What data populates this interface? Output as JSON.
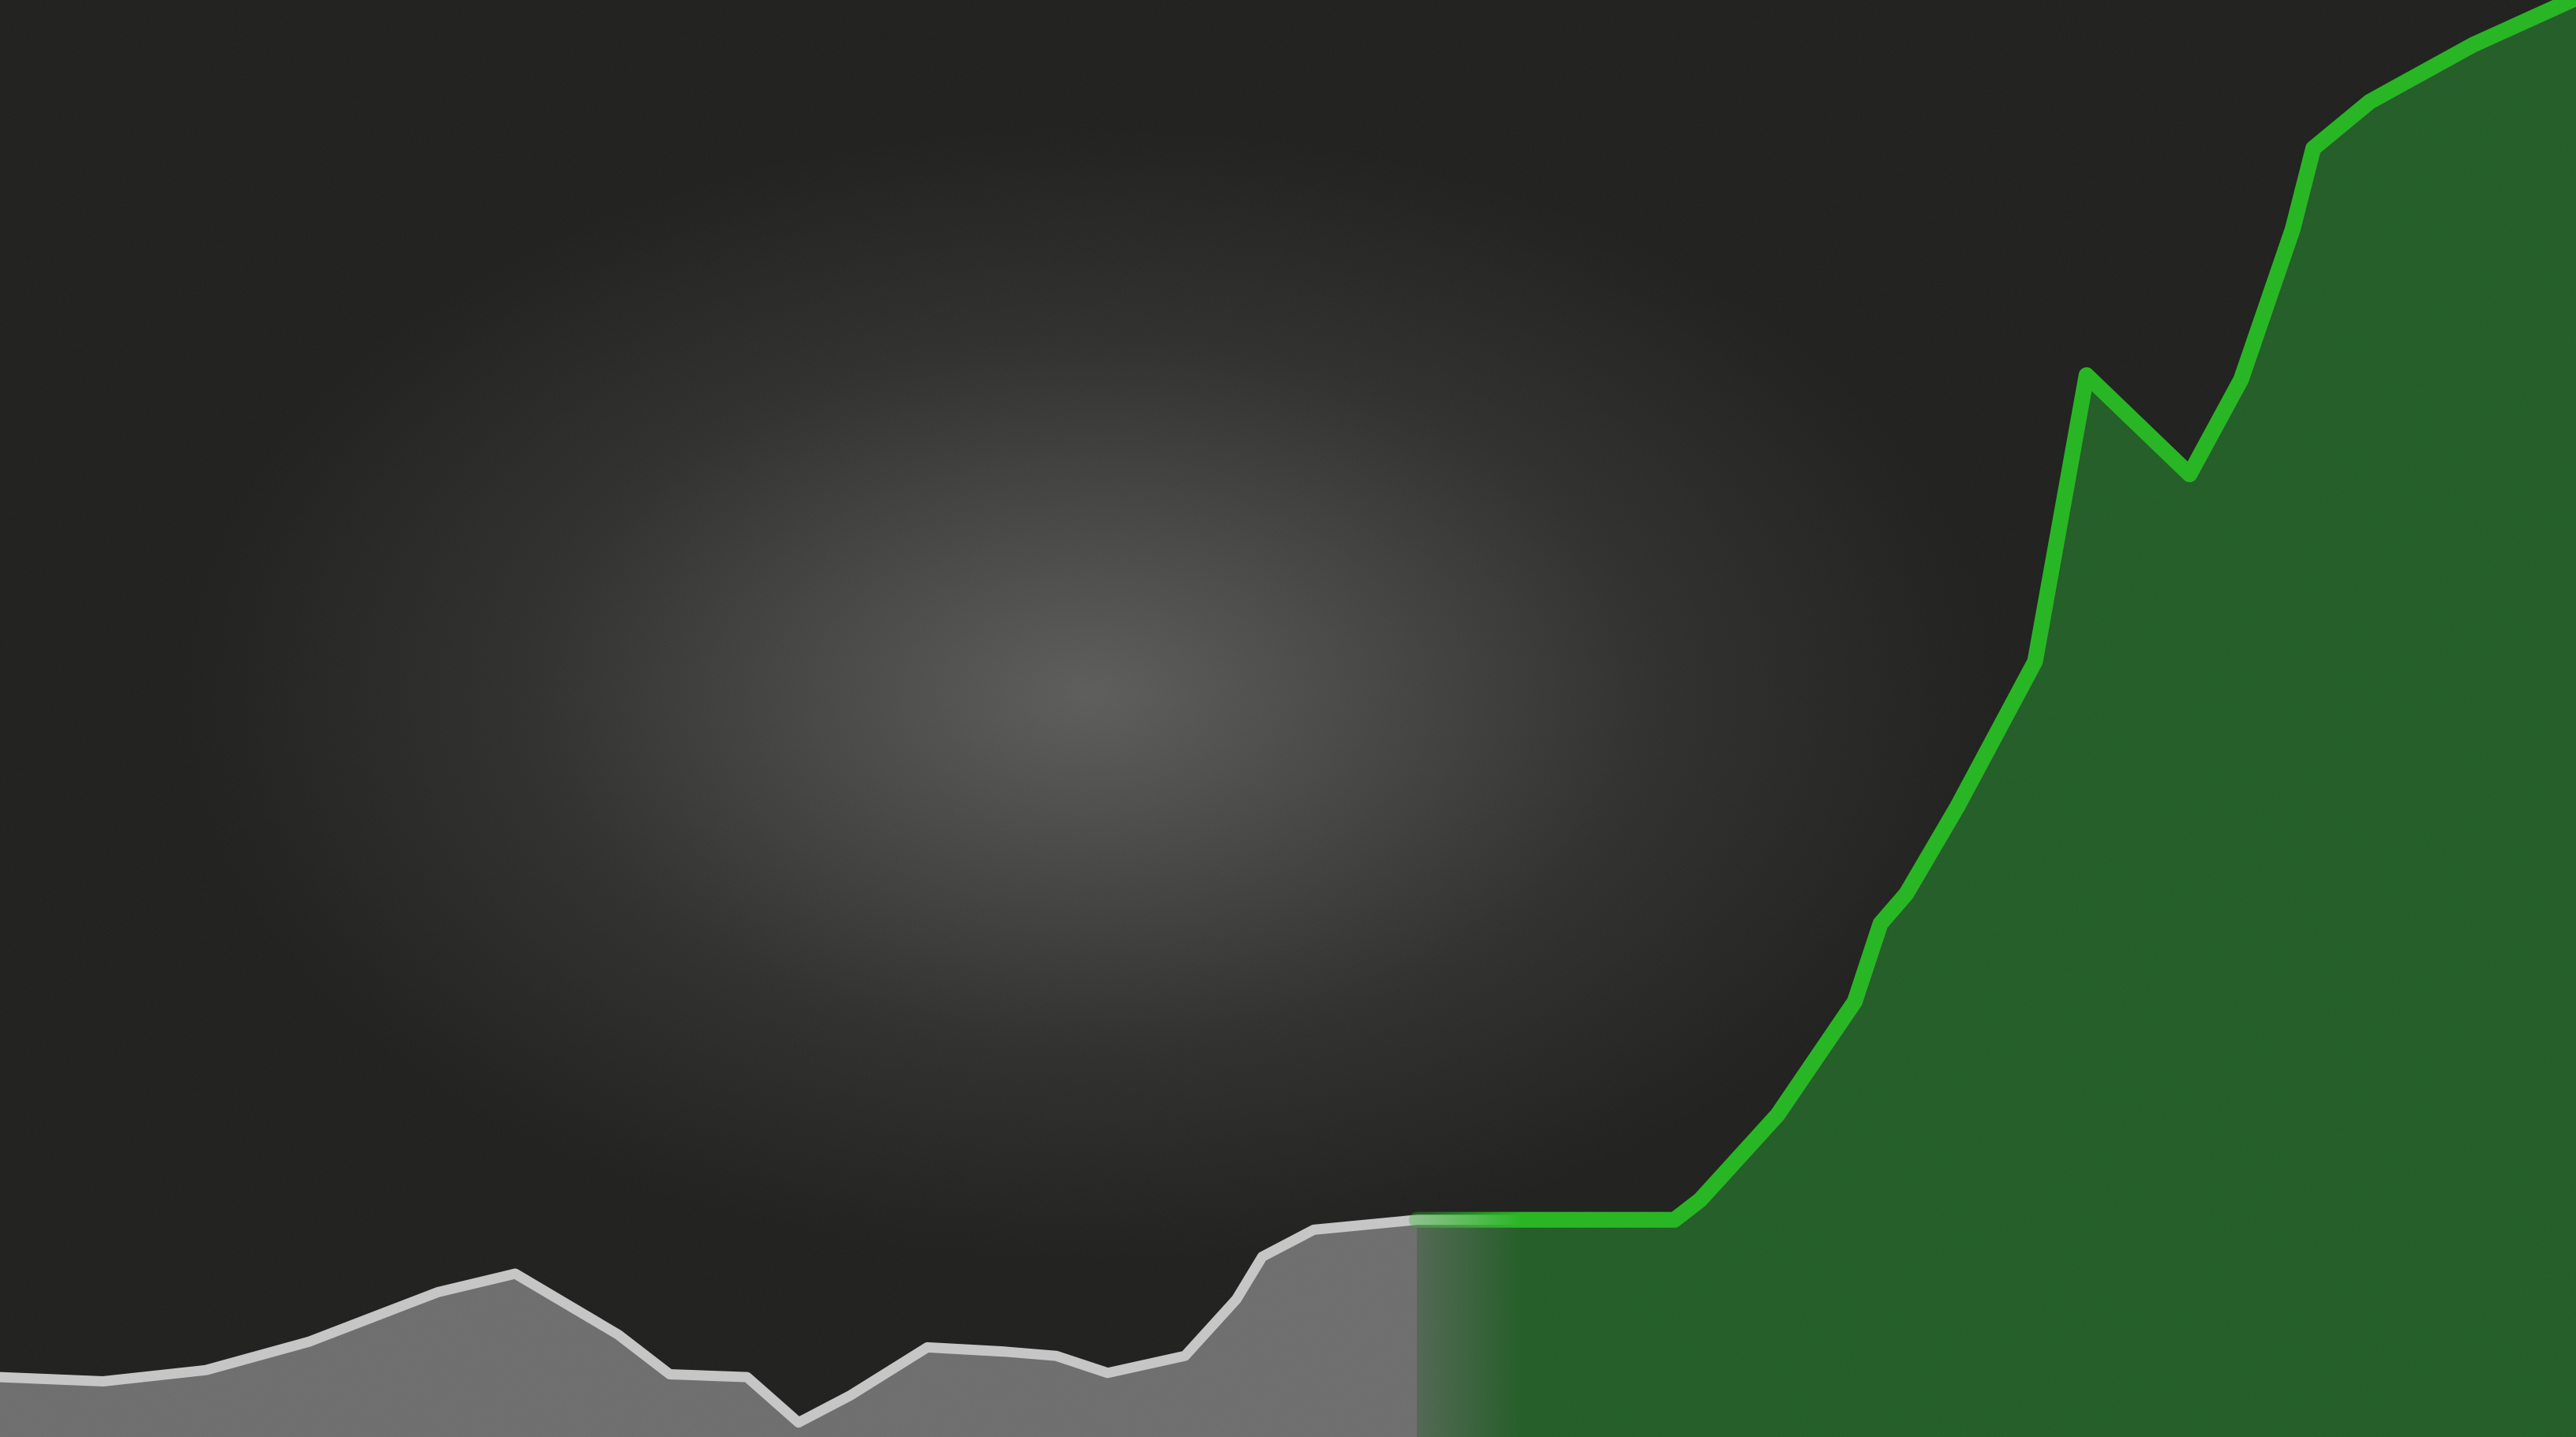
{
  "colors": {
    "background_center": "#5a5a58",
    "background_edge": "#1c1c1b",
    "past_fill": "#6b6b6b",
    "past_line": "#c4c4c4",
    "future_fill": "#1f5a23",
    "future_line": "#22b41e"
  },
  "chart_data": {
    "type": "area",
    "title": "",
    "xlabel": "",
    "ylabel": "",
    "grid": false,
    "legend": "none",
    "xlim": [
      0,
      100
    ],
    "ylim": [
      0,
      100
    ],
    "highlight_from_x": 56,
    "series": [
      {
        "style": "past",
        "x": [
          0,
          4,
          8,
          12,
          17,
          20,
          24,
          26,
          29,
          31,
          33,
          36,
          39,
          41,
          43,
          46,
          48,
          49,
          51,
          55,
          60
        ],
        "y": [
          3.5,
          3.2,
          4.0,
          6.0,
          9.5,
          10.8,
          6.5,
          3.7,
          3.5,
          0.3,
          2.2,
          5.6,
          5.3,
          5.0,
          3.8,
          5.0,
          9.0,
          12.0,
          13.9,
          14.6,
          14.6
        ]
      },
      {
        "style": "highlight",
        "x": [
          55,
          60,
          65,
          66,
          69,
          72,
          73,
          74,
          76,
          79,
          81,
          85,
          87,
          89,
          89.8,
          92,
          96,
          100
        ],
        "y": [
          14.6,
          14.6,
          14.6,
          16.0,
          22.0,
          30.0,
          35.5,
          37.6,
          43.8,
          54.0,
          74.2,
          67.2,
          73.9,
          84.5,
          90.2,
          93.5,
          97.5,
          100.8
        ]
      }
    ]
  }
}
